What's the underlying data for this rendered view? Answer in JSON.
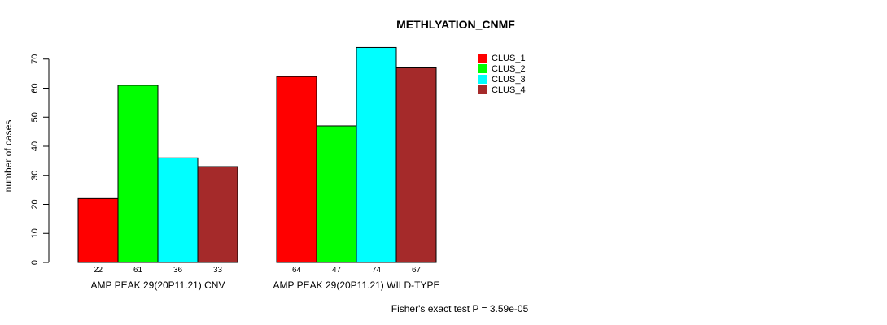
{
  "chart_data": {
    "type": "bar",
    "title": "METHLYATION_CNMF",
    "ylabel": "number of cases",
    "xlabel": "",
    "ylim": [
      0,
      70
    ],
    "yticks": [
      0,
      10,
      20,
      30,
      40,
      50,
      60,
      70
    ],
    "grid": false,
    "legend_position": "top-right",
    "categories": [
      "AMP PEAK 29(20P11.21) CNV",
      "AMP PEAK 29(20P11.21) WILD-TYPE"
    ],
    "series": [
      {
        "name": "CLUS_1",
        "color": "#ff0000",
        "values": [
          22,
          64
        ]
      },
      {
        "name": "CLUS_2",
        "color": "#00ff00",
        "values": [
          61,
          47
        ]
      },
      {
        "name": "CLUS_3",
        "color": "#00ffff",
        "values": [
          36,
          74
        ]
      },
      {
        "name": "CLUS_4",
        "color": "#a52a2a",
        "values": [
          33,
          67
        ]
      }
    ],
    "footnote": "Fisher's exact test P = 3.59e-05"
  }
}
